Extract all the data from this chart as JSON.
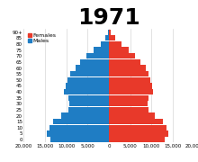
{
  "title": "1971",
  "title_fontsize": 18,
  "female_color": "#E8392A",
  "male_color": "#1F7DC4",
  "background_color": "#FFFFFF",
  "grid_color": "#CCCCCC",
  "xlim": 20000,
  "age_groups": [
    "0",
    "5",
    "10",
    "15",
    "20",
    "25",
    "30",
    "35",
    "40",
    "45",
    "50",
    "55",
    "60",
    "65",
    "70",
    "75",
    "80",
    "85",
    "90+"
  ],
  "males": [
    13800,
    14500,
    14000,
    13200,
    11200,
    9600,
    9300,
    9600,
    10500,
    10200,
    9700,
    9000,
    7900,
    6700,
    5300,
    3600,
    1900,
    750,
    160
  ],
  "females": [
    13200,
    13900,
    13500,
    12700,
    10800,
    9300,
    9100,
    9400,
    10300,
    10200,
    9800,
    9300,
    8600,
    7400,
    6200,
    4700,
    2900,
    1400,
    450
  ],
  "xticks": [
    -20000,
    -15000,
    -10000,
    -5000,
    0,
    5000,
    10000,
    15000,
    20000
  ],
  "xtick_labels": [
    "20,000",
    "15,000",
    "10,000",
    "5,000",
    "0",
    "5,000",
    "10,000",
    "15,000",
    "20,000"
  ],
  "ytick_fontsize": 4,
  "xtick_fontsize": 4,
  "legend_fontsize": 4.5,
  "bar_height": 0.95
}
